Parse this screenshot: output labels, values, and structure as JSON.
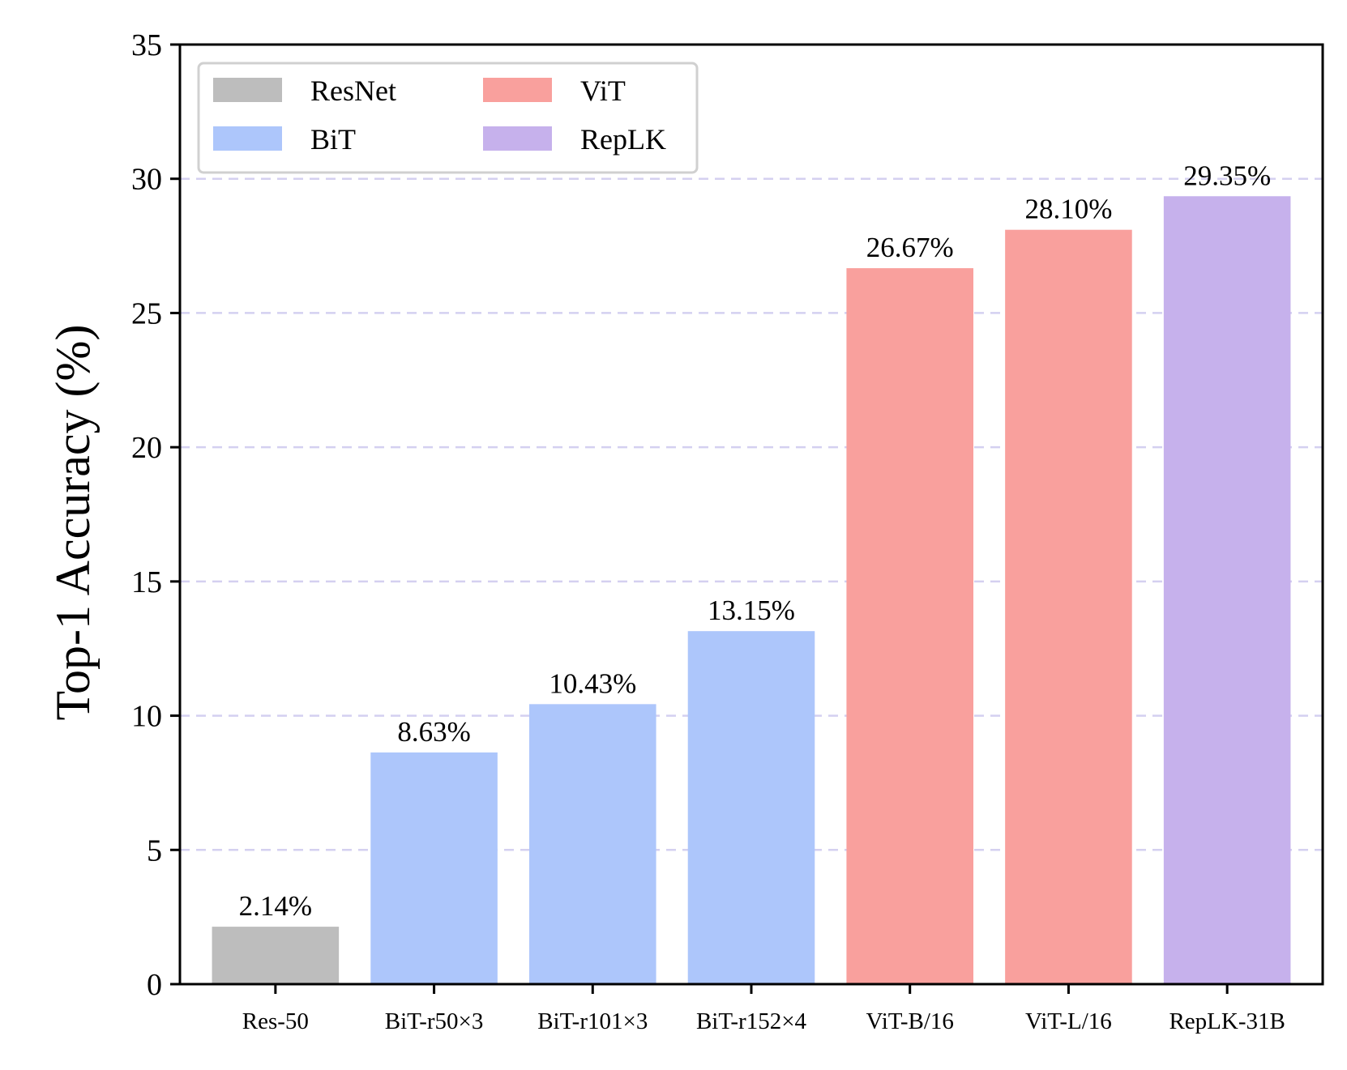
{
  "chart_data": {
    "type": "bar",
    "title": "",
    "xlabel": "",
    "ylabel": "Top-1 Accuracy (%)",
    "ylim": [
      0,
      35
    ],
    "yticks": [
      0,
      5,
      10,
      15,
      20,
      25,
      30,
      35
    ],
    "grid": "horizontal dashed",
    "legend_position": "top-left",
    "categories": [
      "Res-50",
      "BiT-r50×3",
      "BiT-r101×3",
      "BiT-r152×4",
      "ViT-B/16",
      "ViT-L/16",
      "RepLK-31B"
    ],
    "values": [
      2.14,
      8.63,
      10.43,
      13.15,
      26.67,
      28.1,
      29.35
    ],
    "value_labels": [
      "2.14%",
      "8.63%",
      "10.43%",
      "13.15%",
      "26.67%",
      "28.10%",
      "29.35%"
    ],
    "groups": [
      "ResNet",
      "BiT",
      "BiT",
      "BiT",
      "ViT",
      "ViT",
      "RepLK"
    ],
    "legend": [
      {
        "name": "ResNet",
        "color": "#bdbdbd"
      },
      {
        "name": "BiT",
        "color": "#adc6fb"
      },
      {
        "name": "ViT",
        "color": "#f9a09d"
      },
      {
        "name": "RepLK",
        "color": "#c6b1ec"
      }
    ],
    "grid_color": "#d4d0f0"
  }
}
